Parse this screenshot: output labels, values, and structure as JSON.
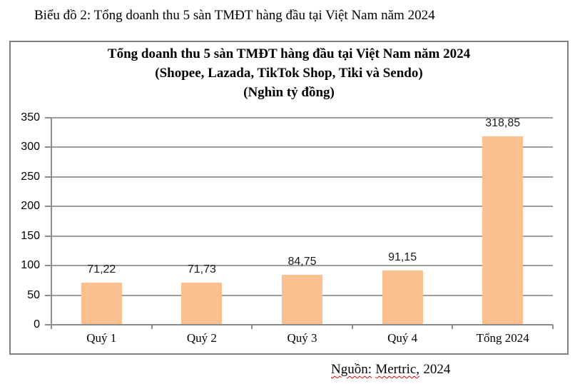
{
  "page": {
    "doc_title": "Biểu đồ 2: Tổng doanh thu 5 sàn TMĐT hàng đầu tại Việt Nam năm 2024",
    "source": {
      "label": "Nguồn:",
      "name": "Mertric,",
      "year": "2024"
    }
  },
  "chart_data": {
    "type": "bar",
    "title": "Tổng doanh thu 5 sàn TMĐT hàng đầu tại Việt Nam năm 2024",
    "subtitle": "(Shopee, Lazada, TikTok Shop, Tiki và Sendo)",
    "unit_label": "(Nghìn tỷ đồng)",
    "categories": [
      "Quý 1",
      "Quý 2",
      "Quý 3",
      "Quý 4",
      "Tổng 2024"
    ],
    "values": [
      71.22,
      71.73,
      84.75,
      91.15,
      318.85
    ],
    "value_labels": [
      "71,22",
      "71,73",
      "84,75",
      "91,15",
      "318,85"
    ],
    "ylim": [
      0,
      350
    ],
    "ytick_step": 50,
    "ytick_labels": [
      "0",
      "50",
      "100",
      "150",
      "200",
      "250",
      "300",
      "350"
    ],
    "bar_color": "#FAC090",
    "grid": true,
    "legend_position": "none",
    "xlabel": "",
    "ylabel": ""
  }
}
